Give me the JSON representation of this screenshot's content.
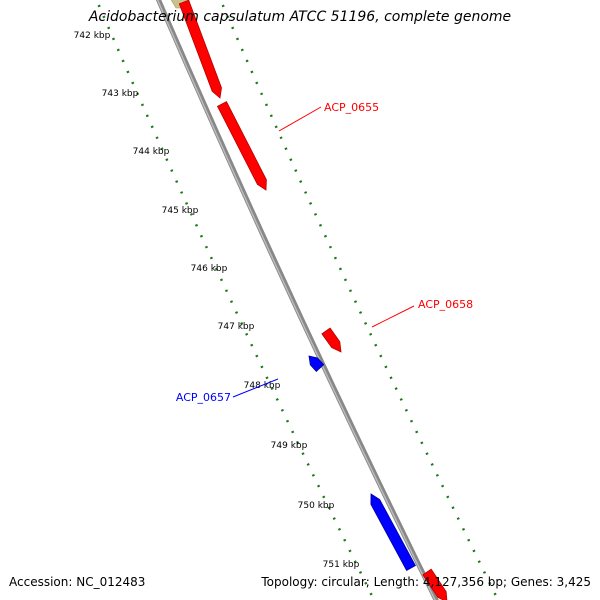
{
  "title": "Acidobacterium capsulatum ATCC 51196, complete genome",
  "accession": "Accession: NC_012483",
  "summary": "Topology: circular; Length: 4,127,356 bp; Genes: 3,425",
  "colors": {
    "forward_strand": "#ff0000",
    "reverse_strand": "#0000ff",
    "backbone": "#888888",
    "tick_marks": "#1a7a1a",
    "label_text": "#000000",
    "partial_feature": "#c9c28a"
  },
  "ruler_ticks": [
    {
      "label": "742 kbp",
      "kbp": 742
    },
    {
      "label": "743 kbp",
      "kbp": 743
    },
    {
      "label": "744 kbp",
      "kbp": 744
    },
    {
      "label": "745 kbp",
      "kbp": 745
    },
    {
      "label": "746 kbp",
      "kbp": 746
    },
    {
      "label": "747 kbp",
      "kbp": 747
    },
    {
      "label": "748 kbp",
      "kbp": 748
    },
    {
      "label": "749 kbp",
      "kbp": 749
    },
    {
      "label": "750 kbp",
      "kbp": 750
    },
    {
      "label": "751 kbp",
      "kbp": 751
    }
  ],
  "features": [
    {
      "id": "upper-forward-1",
      "strand": "forward",
      "label": ""
    },
    {
      "id": "upper-forward-2",
      "strand": "forward",
      "label": ""
    },
    {
      "id": "middle-forward",
      "strand": "forward",
      "label": ""
    },
    {
      "id": "middle-reverse",
      "strand": "reverse",
      "label": ""
    },
    {
      "id": "lower-reverse",
      "strand": "reverse",
      "label": ""
    },
    {
      "id": "lower-forward",
      "strand": "forward",
      "label": ""
    }
  ],
  "gene_labels": [
    {
      "text": "ACP_0655",
      "strand": "forward"
    },
    {
      "text": "ACP_0658",
      "strand": "forward"
    },
    {
      "text": "ACP_0657",
      "strand": "reverse"
    }
  ]
}
